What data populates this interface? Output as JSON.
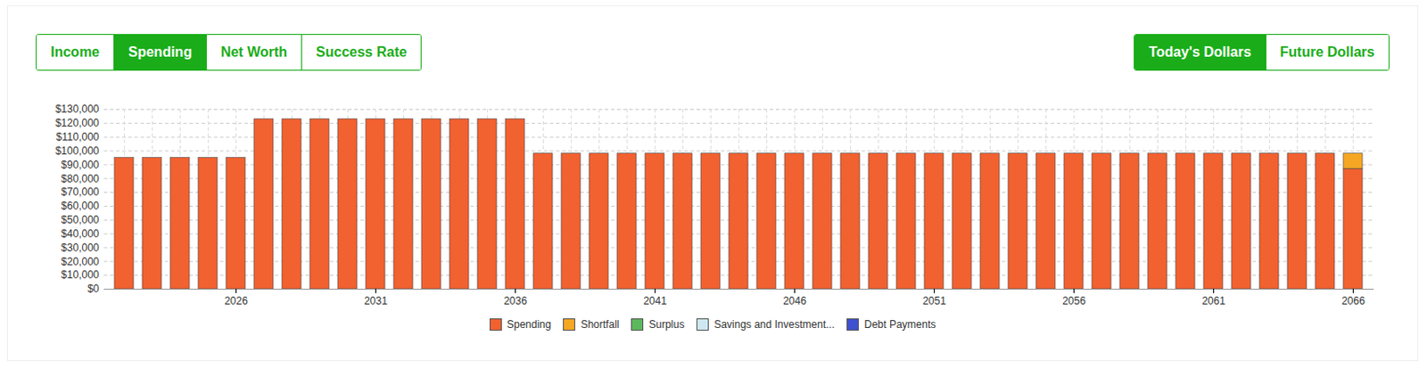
{
  "tabs": [
    "Income",
    "Spending",
    "Net Worth",
    "Success Rate"
  ],
  "active_tab": "Spending",
  "dollar_modes": [
    "Today's Dollars",
    "Future Dollars"
  ],
  "active_dollar_mode": "Today's Dollars",
  "chart_data": {
    "type": "bar",
    "stacked": true,
    "grid": true,
    "legend": "bottom",
    "categories": [
      2022,
      2023,
      2024,
      2025,
      2026,
      2027,
      2028,
      2029,
      2030,
      2031,
      2032,
      2033,
      2034,
      2035,
      2036,
      2037,
      2038,
      2039,
      2040,
      2041,
      2042,
      2043,
      2044,
      2045,
      2046,
      2047,
      2048,
      2049,
      2050,
      2051,
      2052,
      2053,
      2054,
      2055,
      2056,
      2057,
      2058,
      2059,
      2060,
      2061,
      2062,
      2063,
      2064,
      2065,
      2066
    ],
    "xticks": [
      2026,
      2031,
      2036,
      2041,
      2046,
      2051,
      2056,
      2061,
      2066
    ],
    "ylim": [
      0,
      130000
    ],
    "yticks": [
      {
        "value": 0,
        "label": "$0"
      },
      {
        "value": 10000,
        "label": "$10,000"
      },
      {
        "value": 20000,
        "label": "$20,000"
      },
      {
        "value": 30000,
        "label": "$30,000"
      },
      {
        "value": 40000,
        "label": "$40,000"
      },
      {
        "value": 50000,
        "label": "$50,000"
      },
      {
        "value": 60000,
        "label": "$60,000"
      },
      {
        "value": 70000,
        "label": "$70,000"
      },
      {
        "value": 80000,
        "label": "$80,000"
      },
      {
        "value": 90000,
        "label": "$90,000"
      },
      {
        "value": 100000,
        "label": "$100,000"
      },
      {
        "value": 110000,
        "label": "$110,000"
      },
      {
        "value": 120000,
        "label": "$120,000"
      },
      {
        "value": 130000,
        "label": "$130,000"
      }
    ],
    "series": [
      {
        "name": "Spending",
        "color": "#f26130",
        "values": [
          95000,
          95000,
          95000,
          95000,
          95000,
          123000,
          123000,
          123000,
          123000,
          123000,
          123000,
          123000,
          123000,
          123000,
          123000,
          98000,
          98000,
          98000,
          98000,
          98000,
          98000,
          98000,
          98000,
          98000,
          98000,
          98000,
          98000,
          98000,
          98000,
          98000,
          98000,
          98000,
          98000,
          98000,
          98000,
          98000,
          98000,
          98000,
          98000,
          98000,
          98000,
          98000,
          98000,
          98000,
          87000
        ]
      },
      {
        "name": "Shortfall",
        "color": "#f5a623",
        "values": [
          0,
          0,
          0,
          0,
          0,
          0,
          0,
          0,
          0,
          0,
          0,
          0,
          0,
          0,
          0,
          0,
          0,
          0,
          0,
          0,
          0,
          0,
          0,
          0,
          0,
          0,
          0,
          0,
          0,
          0,
          0,
          0,
          0,
          0,
          0,
          0,
          0,
          0,
          0,
          0,
          0,
          0,
          0,
          0,
          11000
        ]
      },
      {
        "name": "Surplus",
        "color": "#5cb85c",
        "values": [
          0,
          0,
          0,
          0,
          0,
          0,
          0,
          0,
          0,
          0,
          0,
          0,
          0,
          0,
          0,
          0,
          0,
          0,
          0,
          0,
          0,
          0,
          0,
          0,
          0,
          0,
          0,
          0,
          0,
          0,
          0,
          0,
          0,
          0,
          0,
          0,
          0,
          0,
          0,
          0,
          0,
          0,
          0,
          0,
          0
        ]
      },
      {
        "name": "Savings and Investment...",
        "color": "#cde8f0",
        "values": [
          0,
          0,
          0,
          0,
          0,
          0,
          0,
          0,
          0,
          0,
          0,
          0,
          0,
          0,
          0,
          0,
          0,
          0,
          0,
          0,
          0,
          0,
          0,
          0,
          0,
          0,
          0,
          0,
          0,
          0,
          0,
          0,
          0,
          0,
          0,
          0,
          0,
          0,
          0,
          0,
          0,
          0,
          0,
          0,
          0
        ]
      },
      {
        "name": "Debt Payments",
        "color": "#3f51d1",
        "values": [
          0,
          0,
          0,
          0,
          0,
          0,
          0,
          0,
          0,
          0,
          0,
          0,
          0,
          0,
          0,
          0,
          0,
          0,
          0,
          0,
          0,
          0,
          0,
          0,
          0,
          0,
          0,
          0,
          0,
          0,
          0,
          0,
          0,
          0,
          0,
          0,
          0,
          0,
          0,
          0,
          0,
          0,
          0,
          0,
          0
        ]
      }
    ]
  }
}
